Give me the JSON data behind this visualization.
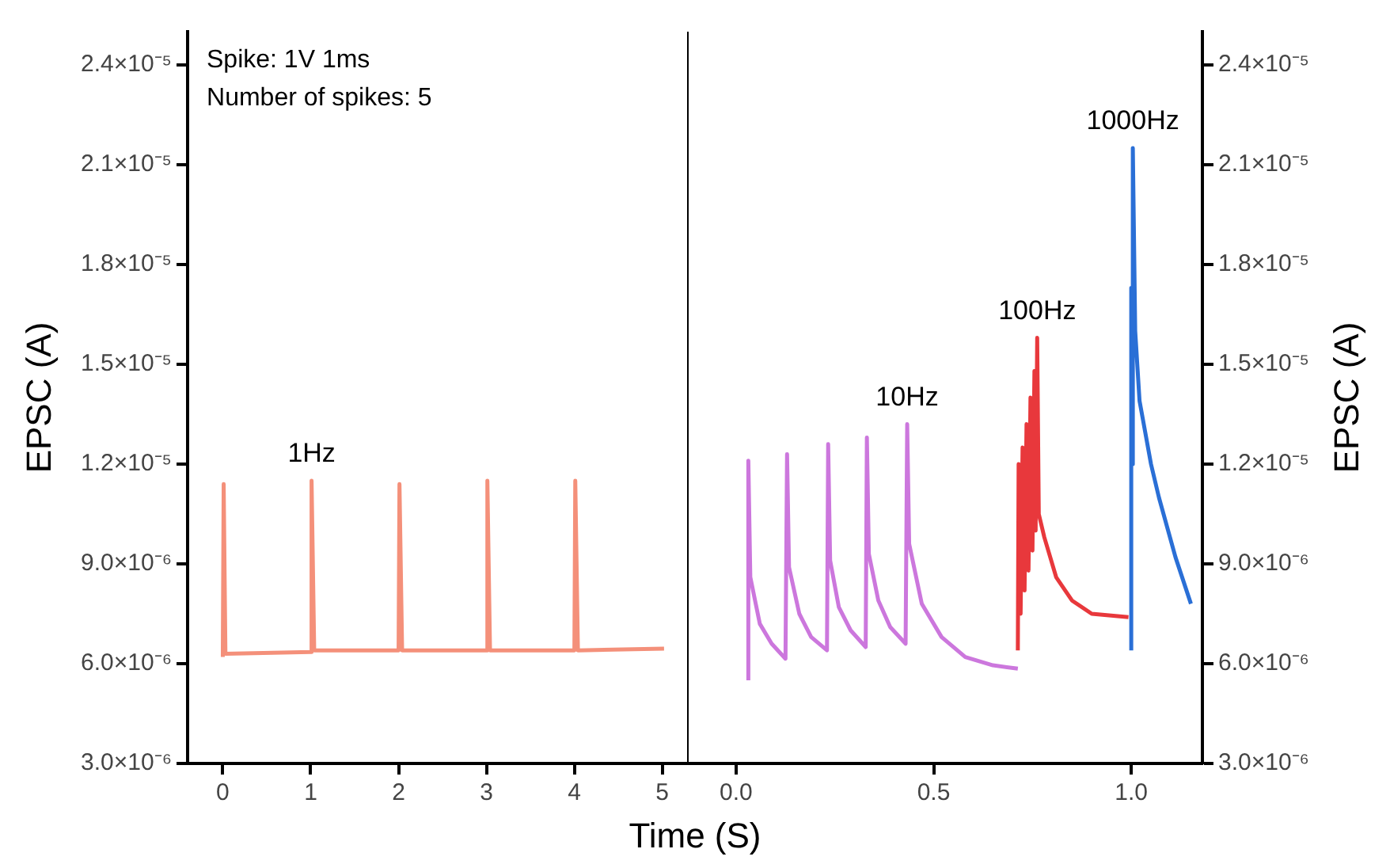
{
  "chart_data": [
    {
      "type": "line",
      "xlabel": "Time (S)",
      "ylabel": "EPSC (A)",
      "marker": "none",
      "grid": false,
      "annotations": [
        "Spike: 1V 1ms",
        "Number of spikes: 5"
      ],
      "xlim": [
        -0.4,
        5.3
      ],
      "xticks": [
        0,
        1,
        2,
        3,
        4,
        5
      ],
      "ylim": [
        3e-06,
        2.5e-05
      ],
      "yticks": [
        {
          "value": 3e-06,
          "label": "3.0×10⁻⁶"
        },
        {
          "value": 6e-06,
          "label": "6.0×10⁻⁶"
        },
        {
          "value": 9e-06,
          "label": "9.0×10⁻⁶"
        },
        {
          "value": 1.2e-05,
          "label": "1.2×10⁻⁵"
        },
        {
          "value": 1.5e-05,
          "label": "1.5×10⁻⁵"
        },
        {
          "value": 1.8e-05,
          "label": "1.8×10⁻⁵"
        },
        {
          "value": 2.1e-05,
          "label": "2.1×10⁻⁵"
        },
        {
          "value": 2.4e-05,
          "label": "2.4×10⁻⁵"
        }
      ],
      "series": [
        {
          "name": "1Hz",
          "color": "#f4907a",
          "x": [
            0,
            0.01,
            0.03,
            1.0,
            1.01,
            1.04,
            2.0,
            2.01,
            2.04,
            3.0,
            3.01,
            3.04,
            4.0,
            4.01,
            4.04,
            5.02
          ],
          "values": [
            6.2e-06,
            1.14e-05,
            6.3e-06,
            6.35e-06,
            1.15e-05,
            6.4e-06,
            6.4e-06,
            1.14e-05,
            6.4e-06,
            6.4e-06,
            1.15e-05,
            6.4e-06,
            6.4e-06,
            1.15e-05,
            6.4e-06,
            6.45e-06
          ]
        }
      ]
    },
    {
      "type": "line",
      "y2label": "EPSC (A)",
      "marker": "none",
      "grid": false,
      "xlim": [
        -0.12,
        1.18
      ],
      "xticks": [
        {
          "value": 0,
          "label": "0.0"
        },
        {
          "value": 0.5,
          "label": "0.5"
        },
        {
          "value": 1,
          "label": "1.0"
        }
      ],
      "y2lim": [
        3e-06,
        2.5e-05
      ],
      "y2ticks": [
        {
          "value": 3e-06,
          "label": "3.0×10⁻⁶"
        },
        {
          "value": 6e-06,
          "label": "6.0×10⁻⁶"
        },
        {
          "value": 9e-06,
          "label": "9.0×10⁻⁶"
        },
        {
          "value": 1.2e-05,
          "label": "1.2×10⁻⁵"
        },
        {
          "value": 1.5e-05,
          "label": "1.5×10⁻⁵"
        },
        {
          "value": 1.8e-05,
          "label": "1.8×10⁻⁵"
        },
        {
          "value": 2.1e-05,
          "label": "2.1×10⁻⁵"
        },
        {
          "value": 2.4e-05,
          "label": "2.4×10⁻⁵"
        }
      ],
      "series": [
        {
          "name": "10Hz",
          "color": "#cc77dd",
          "axis": "y2",
          "x": [
            0.031,
            0.031,
            0.036,
            0.06,
            0.09,
            0.125,
            0.129,
            0.134,
            0.16,
            0.19,
            0.23,
            0.233,
            0.238,
            0.26,
            0.29,
            0.328,
            0.331,
            0.336,
            0.36,
            0.39,
            0.429,
            0.433,
            0.438,
            0.47,
            0.52,
            0.58,
            0.65,
            0.713
          ],
          "values": [
            5.5e-06,
            1.21e-05,
            8.6e-06,
            7.2e-06,
            6.6e-06,
            6.15e-06,
            1.23e-05,
            8.9e-06,
            7.5e-06,
            6.8e-06,
            6.4e-06,
            1.26e-05,
            9.1e-06,
            7.7e-06,
            7e-06,
            6.5e-06,
            1.28e-05,
            9.3e-06,
            7.9e-06,
            7.1e-06,
            6.6e-06,
            1.32e-05,
            9.6e-06,
            7.8e-06,
            6.8e-06,
            6.2e-06,
            5.95e-06,
            5.85e-06
          ]
        },
        {
          "name": "100Hz",
          "color": "#e8383c",
          "axis": "y2",
          "x": [
            0.713,
            0.715,
            0.72,
            0.725,
            0.73,
            0.735,
            0.74,
            0.745,
            0.75,
            0.755,
            0.758,
            0.762,
            0.766,
            0.78,
            0.81,
            0.85,
            0.9,
            0.993
          ],
          "values": [
            6.4e-06,
            1.2e-05,
            7.5e-06,
            1.25e-05,
            8.2e-06,
            1.32e-05,
            8.8e-06,
            1.4e-05,
            9.4e-06,
            1.48e-05,
            1e-05,
            1.58e-05,
            1.05e-05,
            9.8e-06,
            8.6e-06,
            7.9e-06,
            7.5e-06,
            7.4e-06
          ]
        },
        {
          "name": "1000Hz",
          "color": "#2a6fd6",
          "axis": "y2",
          "x": [
            1.0,
            1.0,
            1.002,
            1.004,
            1.01,
            1.021,
            1.05,
            1.07,
            1.112,
            1.151
          ],
          "values": [
            6.4e-06,
            1.73e-05,
            1.2e-05,
            2.15e-05,
            1.6e-05,
            1.39e-05,
            1.2e-05,
            1.1e-05,
            9.2e-06,
            7.8e-06
          ]
        }
      ]
    }
  ]
}
